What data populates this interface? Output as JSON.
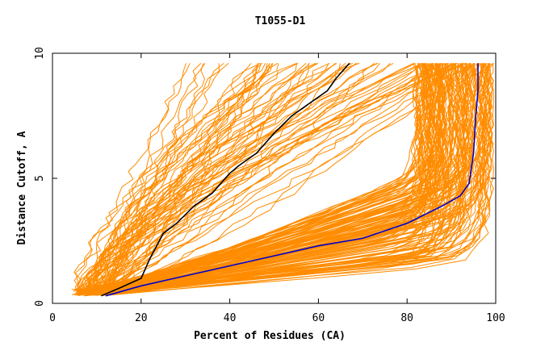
{
  "chart_data": {
    "type": "line",
    "title": "T1055-D1",
    "xlabel": "Percent of Residues (CA)",
    "ylabel": "Distance Cutoff, A",
    "xlim": [
      0,
      100
    ],
    "ylim": [
      0,
      10
    ],
    "x_ticks": [
      0,
      20,
      40,
      60,
      80,
      100
    ],
    "y_ticks": [
      0,
      5,
      10
    ],
    "grid": false,
    "series_note_colors": {
      "models": "#ff8c00",
      "highlight_1": "#000000",
      "highlight_2": "#0000cc"
    },
    "series": [
      {
        "color": "#000000",
        "x": [
          11,
          15,
          20,
          22,
          25,
          28,
          32,
          36,
          40,
          42,
          46,
          50,
          54,
          58,
          62,
          64,
          67
        ],
        "y": [
          0.3,
          0.6,
          1.0,
          1.8,
          2.8,
          3.2,
          3.9,
          4.4,
          5.2,
          5.5,
          6.0,
          6.8,
          7.5,
          8.0,
          8.5,
          9.0,
          9.6
        ]
      },
      {
        "color": "#0000cc",
        "x": [
          12,
          20,
          30,
          40,
          50,
          60,
          70,
          80,
          88,
          92,
          94,
          95,
          95.5,
          96,
          96
        ],
        "y": [
          0.3,
          0.7,
          1.1,
          1.5,
          1.9,
          2.3,
          2.6,
          3.2,
          3.9,
          4.3,
          4.8,
          6.0,
          7.5,
          8.5,
          9.6
        ]
      }
    ]
  }
}
